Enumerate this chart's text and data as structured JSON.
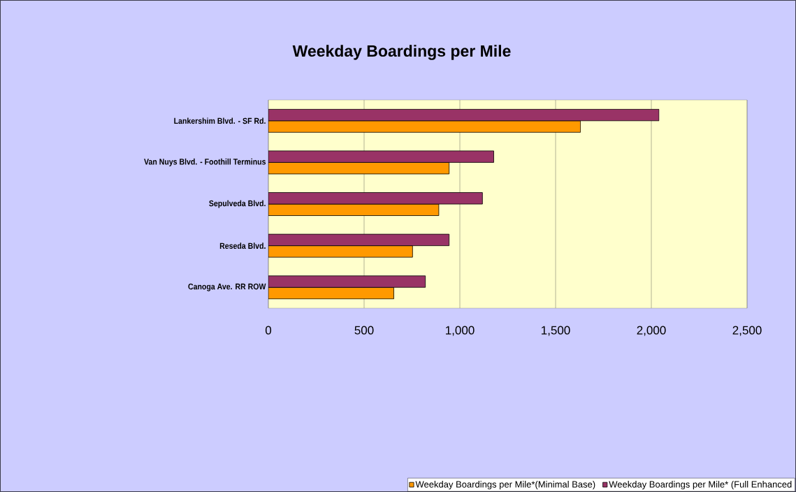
{
  "chart_data": {
    "type": "bar",
    "orientation": "horizontal",
    "title": "Weekday Boardings per Mile",
    "categories": [
      "Lankershim Blvd. - SF Rd.",
      "Van Nuys Blvd. - Foothill Terminus",
      "Sepulveda Blvd.",
      "Reseda Blvd.",
      "Canoga Ave. RR ROW"
    ],
    "series": [
      {
        "name": "Weekday Boardings per Mile*(Minimal Base)",
        "color": "#ff9900",
        "values": [
          1630,
          944,
          890,
          753,
          655
        ]
      },
      {
        "name": "Weekday Boardings per Mile* (Full Enhanced",
        "color": "#993366",
        "values": [
          2040,
          1177,
          1118,
          944,
          820
        ]
      }
    ],
    "xlim": [
      0,
      2500
    ],
    "xticks": [
      0,
      500,
      {
        "value": 1000,
        "label": "1,000"
      },
      {
        "value": 1500,
        "label": "1,500"
      },
      {
        "value": 2000,
        "label": "2,000"
      },
      {
        "value": 2500,
        "label": "2,500"
      }
    ],
    "grid": "x",
    "legend": "bottom"
  }
}
